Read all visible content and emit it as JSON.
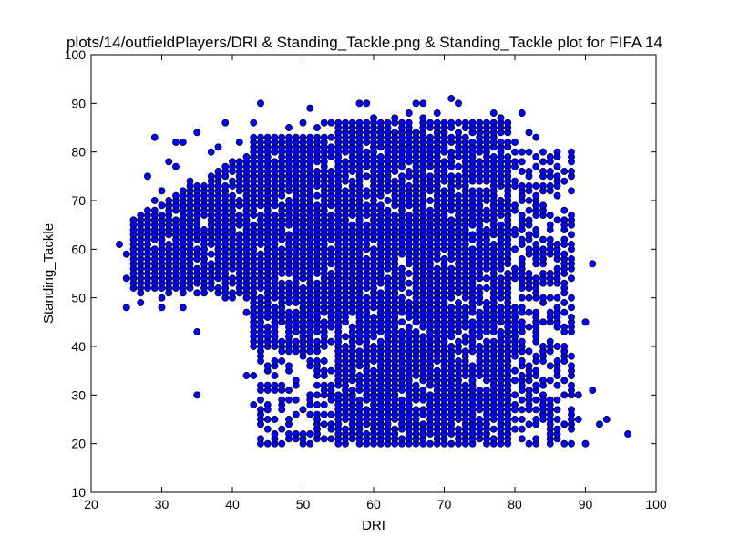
{
  "chart_data": {
    "type": "scatter",
    "title": "plots/14/outfieldPlayers/DRI & Standing_Tackle.png & Standing_Tackle plot for FIFA 14",
    "xlabel": "DRI",
    "ylabel": "Standing_Tackle",
    "xlim": [
      20,
      100
    ],
    "ylim": [
      10,
      100
    ],
    "xticks": [
      "20",
      "30",
      "40",
      "50",
      "60",
      "70",
      "80",
      "90",
      "100"
    ],
    "yticks": [
      "10",
      "20",
      "30",
      "40",
      "50",
      "60",
      "70",
      "80",
      "90",
      "100"
    ],
    "grid": false,
    "marker_color": "#0000ff",
    "marker_edge_color": "#000000",
    "points": [
      [
        24,
        61
      ],
      [
        25,
        48
      ],
      [
        25,
        54
      ],
      [
        25,
        59
      ],
      [
        26,
        62
      ],
      [
        26,
        55
      ],
      [
        27,
        49
      ],
      [
        27,
        51
      ],
      [
        28,
        62
      ],
      [
        28,
        75
      ],
      [
        28,
        68
      ],
      [
        28,
        57
      ],
      [
        29,
        83
      ],
      [
        29,
        70
      ],
      [
        29,
        65
      ],
      [
        30,
        48
      ],
      [
        30,
        50
      ],
      [
        30,
        72
      ],
      [
        31,
        51
      ],
      [
        31,
        78
      ],
      [
        32,
        82
      ],
      [
        32,
        77
      ],
      [
        33,
        82
      ],
      [
        33,
        48
      ],
      [
        34,
        74
      ],
      [
        35,
        84
      ],
      [
        35,
        30
      ],
      [
        35,
        43
      ],
      [
        36,
        52
      ],
      [
        37,
        80
      ],
      [
        38,
        81
      ],
      [
        39,
        76
      ],
      [
        39,
        86
      ],
      [
        40,
        71
      ],
      [
        41,
        82
      ],
      [
        41,
        60
      ],
      [
        42,
        47
      ],
      [
        42,
        34
      ],
      [
        43,
        34
      ],
      [
        43,
        82
      ],
      [
        43,
        28
      ],
      [
        43,
        86
      ],
      [
        44,
        90
      ],
      [
        44,
        45
      ],
      [
        44,
        38
      ],
      [
        45,
        83
      ],
      [
        45,
        42
      ],
      [
        45,
        25
      ],
      [
        46,
        80
      ],
      [
        46,
        22
      ],
      [
        47,
        46
      ],
      [
        47,
        37
      ],
      [
        47,
        20
      ],
      [
        48,
        85
      ],
      [
        48,
        36
      ],
      [
        48,
        29
      ],
      [
        49,
        33
      ],
      [
        49,
        21
      ],
      [
        50,
        86
      ],
      [
        50,
        41
      ],
      [
        51,
        89
      ],
      [
        51,
        28
      ],
      [
        52,
        85
      ],
      [
        52,
        39
      ],
      [
        53,
        86
      ],
      [
        53,
        31
      ],
      [
        54,
        86
      ],
      [
        54,
        23
      ],
      [
        55,
        85
      ],
      [
        55,
        22
      ],
      [
        56,
        84
      ],
      [
        56,
        36
      ],
      [
        57,
        86
      ],
      [
        57,
        25
      ],
      [
        58,
        90
      ],
      [
        59,
        90
      ],
      [
        59,
        84
      ],
      [
        60,
        87
      ],
      [
        60,
        24
      ],
      [
        61,
        86
      ],
      [
        62,
        85
      ],
      [
        62,
        20
      ],
      [
        63,
        87
      ],
      [
        63,
        22
      ],
      [
        64,
        86
      ],
      [
        65,
        88
      ],
      [
        65,
        21
      ],
      [
        66,
        90
      ],
      [
        67,
        90
      ],
      [
        67,
        87
      ],
      [
        68,
        85
      ],
      [
        68,
        25
      ],
      [
        69,
        88
      ],
      [
        69,
        82
      ],
      [
        70,
        84
      ],
      [
        70,
        22
      ],
      [
        71,
        91
      ],
      [
        71,
        86
      ],
      [
        72,
        90
      ],
      [
        72,
        60
      ],
      [
        73,
        86
      ],
      [
        73,
        20
      ],
      [
        74,
        86
      ],
      [
        74,
        33
      ],
      [
        75,
        85
      ],
      [
        75,
        28
      ],
      [
        76,
        84
      ],
      [
        76,
        21
      ],
      [
        77,
        88
      ],
      [
        77,
        40
      ],
      [
        78,
        87
      ],
      [
        78,
        58
      ],
      [
        79,
        82
      ],
      [
        79,
        44
      ],
      [
        80,
        82
      ],
      [
        80,
        30
      ],
      [
        81,
        88
      ],
      [
        81,
        55
      ],
      [
        82,
        84
      ],
      [
        82,
        60
      ],
      [
        83,
        83
      ],
      [
        83,
        25
      ],
      [
        84,
        75
      ],
      [
        84,
        45
      ],
      [
        85,
        73
      ],
      [
        85,
        22
      ],
      [
        86,
        75
      ],
      [
        86,
        58
      ],
      [
        87,
        74
      ],
      [
        87,
        55
      ],
      [
        88,
        54
      ],
      [
        88,
        46
      ],
      [
        89,
        30
      ],
      [
        89,
        25
      ],
      [
        90,
        45
      ],
      [
        90,
        20
      ],
      [
        91,
        31
      ],
      [
        91,
        57
      ],
      [
        92,
        24
      ],
      [
        93,
        25
      ],
      [
        96,
        22
      ],
      [
        87,
        30
      ],
      [
        86,
        25
      ],
      [
        88,
        38
      ]
    ],
    "dense_region": [
      {
        "x": [
          26,
          43
        ],
        "y_min_at_start": 52,
        "y_max_at_start": 66,
        "y_min_at_end": 50,
        "y_max_at_end": 80,
        "step": 1,
        "ystep": 1
      },
      {
        "x": [
          43,
          55
        ],
        "y_min": 40,
        "y_max": 83,
        "step": 1,
        "ystep": 1
      },
      {
        "x": [
          55,
          79
        ],
        "y_min": 20,
        "y_max": 86,
        "step": 1,
        "ystep": 1
      },
      {
        "x": [
          44,
          55
        ],
        "y_min": 20,
        "y_max": 40,
        "step": 1,
        "ystep": 1,
        "density": 0.45
      },
      {
        "x": [
          79,
          88
        ],
        "y_min": 20,
        "y_max": 80,
        "step": 1,
        "ystep": 1,
        "density": 0.55
      }
    ]
  }
}
